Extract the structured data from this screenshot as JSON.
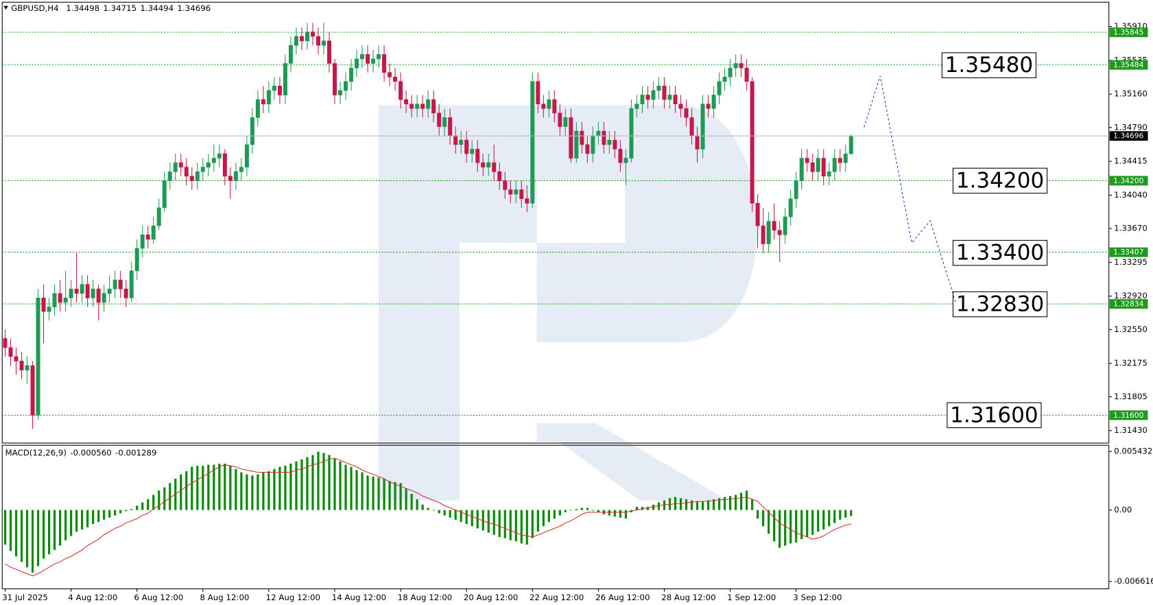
{
  "chart_data": [
    {
      "type": "candlestick",
      "title": "GBPUSD,H4",
      "categories": [
        "31 Jul 2025",
        null,
        null,
        null,
        null,
        null,
        null,
        null,
        null,
        null,
        null,
        null,
        "4 Aug 12:00",
        null,
        null,
        null,
        null,
        null,
        null,
        null,
        null,
        null,
        null,
        null,
        "6 Aug 12:00",
        null,
        null,
        null,
        null,
        null,
        null,
        null,
        null,
        null,
        null,
        null,
        "8 Aug 12:00",
        null,
        null,
        null,
        null,
        null,
        null,
        null,
        null,
        null,
        null,
        null,
        "12 Aug 12:00",
        null,
        null,
        null,
        null,
        null,
        null,
        null,
        null,
        null,
        null,
        null,
        "14 Aug 12:00",
        null,
        null,
        null,
        null,
        null,
        null,
        null,
        null,
        null,
        null,
        null,
        "18 Aug 12:00",
        null,
        null,
        null,
        null,
        null,
        null,
        null,
        null,
        null,
        null,
        null,
        "20 Aug 12:00",
        null,
        null,
        null,
        null,
        null,
        null,
        null,
        null,
        null,
        null,
        null,
        "22 Aug 12:00",
        null,
        null,
        null,
        null,
        null,
        null,
        null,
        null,
        null,
        null,
        null,
        "26 Aug 12:00",
        null,
        null,
        null,
        null,
        null,
        null,
        null,
        null,
        null,
        null,
        null,
        "28 Aug 12:00",
        null,
        null,
        null,
        null,
        null,
        null,
        null,
        null,
        null,
        null,
        null,
        "1 Sep 12:00",
        null,
        null,
        null,
        null,
        null,
        null,
        null,
        null,
        null,
        null,
        null,
        "3 Sep 12:00",
        null,
        null,
        null,
        null,
        null,
        null,
        null,
        null,
        null,
        null
      ],
      "open": [
        1.3245,
        1.3235,
        1.3225,
        1.322,
        1.321,
        1.3215,
        1.316,
        1.329,
        1.3275,
        1.328,
        1.3295,
        1.3285,
        1.329,
        1.33,
        1.3295,
        1.3305,
        1.329,
        1.33,
        1.3285,
        1.3295,
        1.33,
        1.331,
        1.33,
        1.329,
        1.332,
        1.3345,
        1.336,
        1.3355,
        1.337,
        1.339,
        1.342,
        1.343,
        1.344,
        1.3435,
        1.3425,
        1.342,
        1.343,
        1.3435,
        1.344,
        1.3445,
        1.345,
        1.3425,
        1.342,
        1.343,
        1.3435,
        1.346,
        1.349,
        1.351,
        1.3505,
        1.352,
        1.3525,
        1.3515,
        1.355,
        1.357,
        1.358,
        1.3575,
        1.3585,
        1.358,
        1.357,
        1.3575,
        1.355,
        1.3515,
        1.352,
        1.353,
        1.3545,
        1.3555,
        1.356,
        1.355,
        1.3555,
        1.356,
        1.354,
        1.3535,
        1.353,
        1.351,
        1.3505,
        1.35,
        1.3505,
        1.35,
        1.351,
        1.3495,
        1.348,
        1.349,
        1.347,
        1.346,
        1.3465,
        1.345,
        1.3455,
        1.344,
        1.3435,
        1.344,
        1.343,
        1.342,
        1.341,
        1.3405,
        1.341,
        1.34,
        1.3395,
        1.353,
        1.3505,
        1.35,
        1.351,
        1.3495,
        1.348,
        1.349,
        1.3445,
        1.3475,
        1.346,
        1.345,
        1.347,
        1.3475,
        1.346,
        1.3465,
        1.3455,
        1.344,
        1.3445,
        1.35,
        1.3505,
        1.3515,
        1.351,
        1.352,
        1.3525,
        1.351,
        1.3515,
        1.3505,
        1.35,
        1.349,
        1.347,
        1.3455,
        1.3505,
        1.35,
        1.3515,
        1.353,
        1.3535,
        1.3545,
        1.355,
        1.3545,
        1.353,
        1.3395,
        1.337,
        1.335,
        1.3375,
        1.3365,
        1.336,
        1.338,
        1.34,
        1.342,
        1.3445,
        1.344,
        1.343,
        1.3445,
        1.3425,
        1.343,
        1.3445,
        1.344,
        1.34498
      ],
      "high": [
        1.3255,
        1.3245,
        1.3235,
        1.323,
        1.3225,
        1.322,
        1.33,
        1.3305,
        1.329,
        1.3305,
        1.331,
        1.332,
        1.331,
        1.334,
        1.3315,
        1.3315,
        1.331,
        1.3305,
        1.3305,
        1.3315,
        1.332,
        1.332,
        1.331,
        1.333,
        1.3355,
        1.337,
        1.337,
        1.338,
        1.34,
        1.343,
        1.344,
        1.345,
        1.345,
        1.3445,
        1.3435,
        1.344,
        1.3445,
        1.345,
        1.346,
        1.346,
        1.3455,
        1.3435,
        1.344,
        1.3445,
        1.347,
        1.35,
        1.352,
        1.3525,
        1.353,
        1.3535,
        1.3535,
        1.356,
        1.358,
        1.359,
        1.359,
        1.3595,
        1.3595,
        1.359,
        1.3595,
        1.3585,
        1.3555,
        1.353,
        1.354,
        1.3555,
        1.3565,
        1.357,
        1.357,
        1.3565,
        1.357,
        1.357,
        1.355,
        1.3545,
        1.354,
        1.352,
        1.3515,
        1.3515,
        1.3515,
        1.352,
        1.352,
        1.3505,
        1.35,
        1.35,
        1.348,
        1.3475,
        1.3475,
        1.3465,
        1.3465,
        1.345,
        1.345,
        1.346,
        1.344,
        1.343,
        1.342,
        1.342,
        1.342,
        1.3415,
        1.354,
        1.354,
        1.3515,
        1.352,
        1.352,
        1.3505,
        1.35,
        1.35,
        1.3485,
        1.3485,
        1.347,
        1.348,
        1.3485,
        1.3485,
        1.3475,
        1.3475,
        1.3465,
        1.3455,
        1.351,
        1.3515,
        1.3525,
        1.3525,
        1.353,
        1.3535,
        1.3535,
        1.3525,
        1.3525,
        1.3515,
        1.351,
        1.35,
        1.348,
        1.3515,
        1.3515,
        1.3525,
        1.354,
        1.3545,
        1.3555,
        1.356,
        1.356,
        1.3555,
        1.3535,
        1.3405,
        1.339,
        1.3385,
        1.3395,
        1.3375,
        1.339,
        1.341,
        1.343,
        1.3455,
        1.3455,
        1.345,
        1.3455,
        1.3455,
        1.344,
        1.3455,
        1.3455,
        1.346,
        1.34715
      ],
      "low": [
        1.3225,
        1.3215,
        1.3205,
        1.32,
        1.3195,
        1.3145,
        1.3155,
        1.324,
        1.3265,
        1.327,
        1.3275,
        1.3275,
        1.328,
        1.3285,
        1.3285,
        1.328,
        1.328,
        1.3265,
        1.3275,
        1.3285,
        1.329,
        1.329,
        1.328,
        1.3285,
        1.331,
        1.3335,
        1.3345,
        1.335,
        1.3365,
        1.3385,
        1.341,
        1.342,
        1.3425,
        1.3415,
        1.341,
        1.341,
        1.342,
        1.3425,
        1.343,
        1.3435,
        1.3415,
        1.34,
        1.341,
        1.342,
        1.3425,
        1.345,
        1.348,
        1.3495,
        1.3495,
        1.351,
        1.3505,
        1.3505,
        1.354,
        1.356,
        1.3565,
        1.3565,
        1.357,
        1.356,
        1.356,
        1.354,
        1.3505,
        1.3505,
        1.351,
        1.352,
        1.3535,
        1.3545,
        1.354,
        1.354,
        1.3545,
        1.353,
        1.3525,
        1.352,
        1.35,
        1.3495,
        1.349,
        1.349,
        1.349,
        1.349,
        1.3485,
        1.347,
        1.347,
        1.346,
        1.345,
        1.345,
        1.344,
        1.344,
        1.343,
        1.3425,
        1.3425,
        1.342,
        1.341,
        1.34,
        1.3395,
        1.3395,
        1.339,
        1.3385,
        1.339,
        1.3495,
        1.349,
        1.349,
        1.3485,
        1.347,
        1.347,
        1.344,
        1.344,
        1.345,
        1.344,
        1.344,
        1.346,
        1.345,
        1.345,
        1.3445,
        1.343,
        1.3415,
        1.344,
        1.349,
        1.3495,
        1.35,
        1.35,
        1.351,
        1.35,
        1.35,
        1.3495,
        1.349,
        1.348,
        1.346,
        1.344,
        1.3445,
        1.349,
        1.349,
        1.3505,
        1.352,
        1.3525,
        1.3535,
        1.3535,
        1.352,
        1.3385,
        1.3345,
        1.334,
        1.334,
        1.3355,
        1.333,
        1.335,
        1.337,
        1.339,
        1.341,
        1.343,
        1.342,
        1.342,
        1.3415,
        1.3415,
        1.342,
        1.343,
        1.343,
        1.34494
      ],
      "close": [
        1.3235,
        1.3225,
        1.322,
        1.321,
        1.3215,
        1.316,
        1.329,
        1.3275,
        1.328,
        1.3295,
        1.3285,
        1.329,
        1.33,
        1.3295,
        1.3305,
        1.329,
        1.33,
        1.3285,
        1.3295,
        1.33,
        1.331,
        1.33,
        1.329,
        1.332,
        1.3345,
        1.336,
        1.3355,
        1.337,
        1.339,
        1.342,
        1.343,
        1.344,
        1.3435,
        1.3425,
        1.342,
        1.343,
        1.3435,
        1.344,
        1.3445,
        1.345,
        1.3425,
        1.342,
        1.343,
        1.3435,
        1.346,
        1.349,
        1.351,
        1.3505,
        1.352,
        1.3525,
        1.3515,
        1.355,
        1.357,
        1.358,
        1.3575,
        1.3585,
        1.358,
        1.357,
        1.3575,
        1.355,
        1.3515,
        1.352,
        1.353,
        1.3545,
        1.3555,
        1.356,
        1.355,
        1.3555,
        1.356,
        1.354,
        1.3535,
        1.353,
        1.351,
        1.3505,
        1.35,
        1.3505,
        1.35,
        1.351,
        1.3495,
        1.348,
        1.349,
        1.347,
        1.346,
        1.3465,
        1.345,
        1.3455,
        1.344,
        1.3435,
        1.344,
        1.343,
        1.342,
        1.341,
        1.3405,
        1.341,
        1.34,
        1.3395,
        1.353,
        1.3505,
        1.35,
        1.351,
        1.3495,
        1.348,
        1.349,
        1.3445,
        1.3475,
        1.346,
        1.345,
        1.347,
        1.3475,
        1.346,
        1.3465,
        1.3455,
        1.344,
        1.3445,
        1.35,
        1.3505,
        1.3515,
        1.351,
        1.352,
        1.3525,
        1.351,
        1.3515,
        1.3505,
        1.35,
        1.349,
        1.347,
        1.3455,
        1.3505,
        1.35,
        1.3515,
        1.353,
        1.3535,
        1.3545,
        1.355,
        1.3545,
        1.353,
        1.3395,
        1.337,
        1.335,
        1.3375,
        1.3365,
        1.336,
        1.338,
        1.34,
        1.342,
        1.3445,
        1.344,
        1.343,
        1.3445,
        1.3425,
        1.343,
        1.3445,
        1.344,
        1.34498,
        1.34696
      ],
      "up_color": "#1f9a55",
      "down_color": "#c8174a",
      "ylim": [
        1.31291,
        1.36179
      ],
      "yticks": [
        {
          "value": 1.3591,
          "label": "1.35910"
        },
        1.35535,
        {
          "value": 1.3516,
          "label": "1.35160"
        },
        {
          "value": 1.3479,
          "label": "1.34790"
        },
        1.34415,
        {
          "value": 1.3404,
          "label": "1.34040"
        },
        {
          "value": 1.3367,
          "label": "1.33670"
        },
        1.33295,
        {
          "value": 1.3292,
          "label": "1.32920"
        },
        {
          "value": 1.3255,
          "label": "1.32550"
        },
        1.32175,
        1.31805,
        {
          "value": 1.3143,
          "label": "1.31430"
        }
      ],
      "grid": false,
      "levels": [
        1.35845,
        1.35484,
        {
          "value": 1.342,
          "label": "1.34200"
        },
        1.33407,
        1.32834,
        {
          "value": 1.316,
          "label": "1.31600"
        }
      ],
      "level_color": "#1f9a1f",
      "annotations": [
        {
          "value": 1.3548,
          "label": "1.35480"
        },
        {
          "value": 1.342,
          "label": "1.34200"
        },
        {
          "value": 1.334,
          "label": "1.33400"
        },
        {
          "value": 1.3283,
          "label": "1.32830"
        },
        {
          "value": 1.316,
          "label": "1.31600"
        }
      ]
    },
    {
      "type": "macd",
      "title": "MACD(12,26,9)",
      "readout": "-0.000560",
      "histogram": {
        "color": "#0a8a0a",
        "values": [
          -0.0032,
          -0.0038,
          -0.0043,
          -0.0048,
          -0.0053,
          -0.0058,
          -0.0052,
          -0.0045,
          -0.0041,
          -0.0037,
          -0.0033,
          -0.0028,
          -0.0024,
          -0.002,
          -0.0018,
          -0.0016,
          -0.0013,
          -0.0011,
          -0.0009,
          -0.0007,
          -0.0005,
          -0.0003,
          -0.0001,
          0.0001,
          0.0004,
          0.0007,
          0.001,
          0.0014,
          0.0018,
          0.0021,
          0.0025,
          0.0029,
          0.0033,
          0.0036,
          0.004,
          0.0041,
          0.0041,
          0.0042,
          0.0042,
          0.0043,
          0.0043,
          0.0041,
          0.0038,
          0.0035,
          0.0033,
          0.0032,
          0.0033,
          0.0035,
          0.0036,
          0.0038,
          0.004,
          0.0041,
          0.0043,
          0.0045,
          0.0047,
          0.0049,
          0.0051,
          0.0054,
          0.0053,
          0.0051,
          0.0048,
          0.0045,
          0.0042,
          0.004,
          0.0037,
          0.0035,
          0.0032,
          0.0031,
          0.003,
          0.0029,
          0.0027,
          0.0026,
          0.0025,
          0.002,
          0.0015,
          0.001,
          0.0005,
          0.0002,
          0.0,
          -0.0003,
          -0.0005,
          -0.0007,
          -0.0009,
          -0.0011,
          -0.0013,
          -0.0015,
          -0.0017,
          -0.0019,
          -0.0021,
          -0.0023,
          -0.0025,
          -0.0026,
          -0.0028,
          -0.0029,
          -0.0031,
          -0.0032,
          -0.0026,
          -0.002,
          -0.0015,
          -0.0011,
          -0.0008,
          -0.0005,
          -0.0002,
          0.0,
          0.0001,
          0.0002,
          0.0002,
          0.0,
          -0.0002,
          -0.0004,
          -0.0005,
          -0.0006,
          -0.0007,
          -0.0008,
          -0.0002,
          0.0003,
          0.0003,
          0.0003,
          0.0005,
          0.0007,
          0.0009,
          0.0011,
          0.0012,
          0.0011,
          0.001,
          0.0009,
          0.0008,
          0.0008,
          0.0009,
          0.001,
          0.0011,
          0.0012,
          0.0013,
          0.0014,
          0.0016,
          0.0018,
          0.001,
          -0.0008,
          -0.0015,
          -0.0022,
          -0.0029,
          -0.0035,
          -0.0033,
          -0.0031,
          -0.003,
          -0.0027,
          -0.0025,
          -0.0023,
          -0.002,
          -0.0018,
          -0.0015,
          -0.0012,
          -0.0009,
          -0.0007,
          -0.00056
        ]
      },
      "signal": {
        "color": "#d0312d",
        "values": [
          -0.005,
          -0.0053,
          -0.0055,
          -0.0057,
          -0.0059,
          -0.0061,
          -0.0059,
          -0.0056,
          -0.0053,
          -0.005,
          -0.0048,
          -0.0045,
          -0.0043,
          -0.004,
          -0.0037,
          -0.0033,
          -0.003,
          -0.0027,
          -0.0023,
          -0.002,
          -0.0017,
          -0.0015,
          -0.0012,
          -0.001,
          -0.0008,
          -0.0005,
          -0.0003,
          0.0001,
          0.0004,
          0.0008,
          0.0011,
          0.0015,
          0.0018,
          0.0022,
          0.0025,
          0.0028,
          0.0031,
          0.0034,
          0.0037,
          0.004,
          0.0042,
          0.0041,
          0.004,
          0.0038,
          0.0037,
          0.0036,
          0.0035,
          0.0035,
          0.0035,
          0.0035,
          0.0035,
          0.0035,
          0.0035,
          0.0037,
          0.0038,
          0.004,
          0.0042,
          0.0043,
          0.0045,
          0.0047,
          0.0048,
          0.0046,
          0.0044,
          0.0042,
          0.004,
          0.0037,
          0.0035,
          0.0033,
          0.0031,
          0.0029,
          0.0026,
          0.0024,
          0.0022,
          0.002,
          0.0018,
          0.0016,
          0.0013,
          0.0011,
          0.0009,
          0.0007,
          0.0004,
          0.0002,
          0.0,
          -0.0002,
          -0.0004,
          -0.0006,
          -0.0008,
          -0.001,
          -0.0012,
          -0.0013,
          -0.0015,
          -0.0017,
          -0.0019,
          -0.0021,
          -0.0023,
          -0.0024,
          -0.0025,
          -0.0023,
          -0.0021,
          -0.0019,
          -0.0017,
          -0.0015,
          -0.0012,
          -0.001,
          -0.0007,
          -0.0004,
          -0.0002,
          -0.0002,
          -0.0002,
          -0.0002,
          -0.0002,
          -0.0002,
          -0.0002,
          -0.0002,
          -0.0001,
          0.0,
          0.0001,
          0.0002,
          0.0003,
          0.0004,
          0.0005,
          0.0005,
          0.0006,
          0.0006,
          0.0007,
          0.0007,
          0.0008,
          0.0008,
          0.0008,
          0.0009,
          0.0009,
          0.001,
          0.001,
          0.0011,
          0.0011,
          0.0012,
          0.001,
          0.0008,
          0.0003,
          -0.0002,
          -0.0007,
          -0.0012,
          -0.0015,
          -0.0018,
          -0.0021,
          -0.0023,
          -0.0025,
          -0.0027,
          -0.0026,
          -0.0024,
          -0.0021,
          -0.0018,
          -0.0016,
          -0.0014,
          -0.001289
        ]
      },
      "ylim": [
        -0.0073,
        0.006
      ],
      "yticks": [
        0.005432,
        {
          "value": 0,
          "label": "0.00"
        },
        -0.006616
      ]
    }
  ]
}
